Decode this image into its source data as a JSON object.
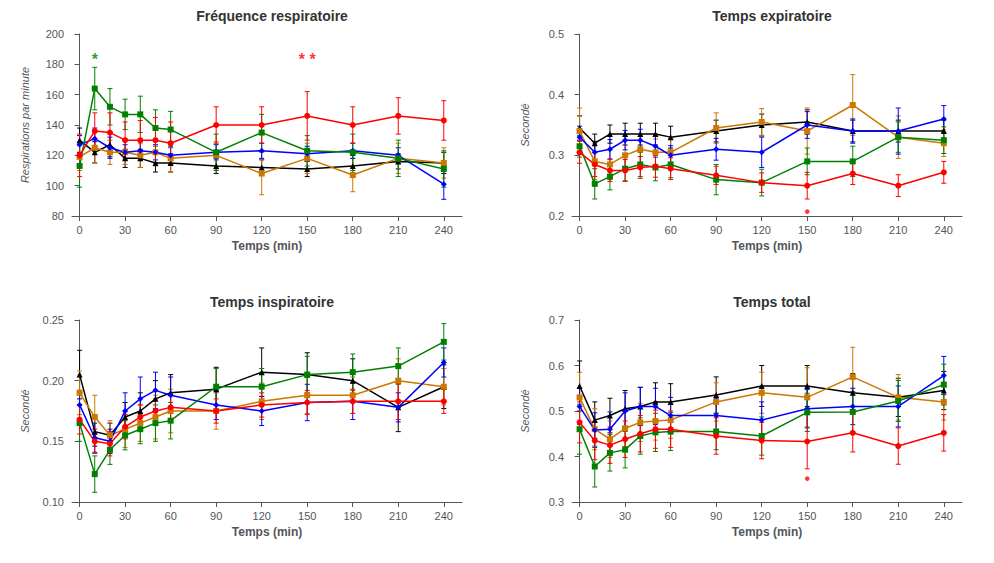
{
  "chart_data": [
    {
      "type": "line",
      "title": "Fréquence respiratoire",
      "xlabel": "Temps (min)",
      "ylabel": "Respirations par minute",
      "x": [
        0,
        10,
        20,
        30,
        40,
        50,
        60,
        90,
        120,
        150,
        180,
        210,
        240
      ],
      "xlim": [
        -5,
        252
      ],
      "xticks": [
        0,
        30,
        60,
        90,
        120,
        150,
        180,
        210,
        240
      ],
      "ylim": [
        80,
        200
      ],
      "yticks": [
        80,
        100,
        120,
        140,
        160,
        180,
        200
      ],
      "grid": false,
      "series": [
        {
          "color": "#000000",
          "marker": "triangle",
          "values": [
            130,
            122,
            127,
            118,
            118,
            115,
            115,
            113,
            112,
            111,
            113,
            116,
            115
          ],
          "errors": [
            8,
            7,
            8,
            6,
            6,
            6,
            6,
            5,
            5,
            5,
            7,
            5,
            7
          ]
        },
        {
          "color": "#CC7700",
          "marker": "square",
          "values": [
            119,
            125,
            122,
            122,
            120,
            122,
            118,
            120,
            108,
            118,
            107,
            118,
            115
          ],
          "errors": [
            9,
            10,
            8,
            8,
            8,
            9,
            9,
            9,
            14,
            10,
            11,
            10,
            10
          ]
        },
        {
          "color": "#0000FF",
          "marker": "diamond",
          "values": [
            127,
            131,
            125,
            122,
            123,
            122,
            120,
            122,
            123,
            121,
            123,
            120,
            101
          ],
          "errors": [
            6,
            7,
            7,
            5,
            6,
            5,
            6,
            5,
            5,
            5,
            5,
            5,
            10
          ]
        },
        {
          "color": "#008000",
          "marker": "square",
          "values": [
            113,
            164,
            152,
            147,
            147,
            138,
            137,
            122,
            135,
            123,
            122,
            118,
            111
          ],
          "errors": [
            14,
            14,
            12,
            10,
            12,
            12,
            12,
            12,
            12,
            10,
            12,
            12,
            12
          ]
        },
        {
          "color": "#FF0000",
          "marker": "circle",
          "values": [
            120,
            136,
            135,
            130,
            130,
            130,
            128,
            140,
            140,
            146,
            140,
            146,
            143
          ],
          "errors": [
            14,
            12,
            13,
            12,
            13,
            15,
            14,
            12,
            12,
            16,
            12,
            12,
            13
          ]
        }
      ],
      "annotations": [
        {
          "x": 10,
          "y": 183,
          "text": "*",
          "color": "#008000"
        },
        {
          "x": 150,
          "y": 183,
          "text": "* *",
          "color": "#FF0000"
        }
      ]
    },
    {
      "type": "line",
      "title": "Temps expiratoire",
      "xlabel": "Temps (min)",
      "ylabel": "Secondé",
      "x": [
        0,
        10,
        20,
        30,
        40,
        50,
        60,
        90,
        120,
        150,
        180,
        210,
        240
      ],
      "xlim": [
        -5,
        252
      ],
      "xticks": [
        0,
        30,
        60,
        90,
        120,
        150,
        180,
        210,
        240
      ],
      "ylim": [
        0.2,
        0.5
      ],
      "yticks": [
        0.2,
        0.3,
        0.4,
        0.5
      ],
      "grid": false,
      "series": [
        {
          "color": "#000000",
          "marker": "triangle",
          "values": [
            0.345,
            0.32,
            0.335,
            0.335,
            0.335,
            0.335,
            0.33,
            0.34,
            0.35,
            0.355,
            0.34,
            0.34,
            0.34
          ],
          "errors": [
            0.02,
            0.015,
            0.015,
            0.018,
            0.018,
            0.018,
            0.018,
            0.018,
            0.018,
            0.02,
            0.018,
            0.018,
            0.018
          ]
        },
        {
          "color": "#CC7700",
          "marker": "square",
          "values": [
            0.34,
            0.29,
            0.285,
            0.3,
            0.31,
            0.305,
            0.305,
            0.345,
            0.355,
            0.34,
            0.383,
            0.33,
            0.32
          ],
          "errors": [
            0.038,
            0.03,
            0.025,
            0.025,
            0.022,
            0.022,
            0.022,
            0.025,
            0.022,
            0.038,
            0.05,
            0.035,
            0.022
          ]
        },
        {
          "color": "#0000FF",
          "marker": "diamond",
          "values": [
            0.33,
            0.305,
            0.31,
            0.325,
            0.325,
            0.315,
            0.3,
            0.31,
            0.305,
            0.35,
            0.34,
            0.34,
            0.36
          ],
          "errors": [
            0.018,
            0.018,
            0.016,
            0.016,
            0.018,
            0.018,
            0.016,
            0.018,
            0.025,
            0.022,
            0.02,
            0.038,
            0.022
          ]
        },
        {
          "color": "#008000",
          "marker": "square",
          "values": [
            0.315,
            0.253,
            0.265,
            0.278,
            0.285,
            0.28,
            0.285,
            0.26,
            0.255,
            0.29,
            0.29,
            0.33,
            0.325
          ],
          "errors": [
            0.018,
            0.025,
            0.022,
            0.02,
            0.02,
            0.022,
            0.022,
            0.025,
            0.022,
            0.022,
            0.025,
            0.025,
            0.022
          ]
        },
        {
          "color": "#FF0000",
          "marker": "circle",
          "values": [
            0.305,
            0.285,
            0.275,
            0.275,
            0.28,
            0.282,
            0.278,
            0.267,
            0.255,
            0.25,
            0.27,
            0.25,
            0.272
          ],
          "errors": [
            0.018,
            0.02,
            0.018,
            0.018,
            0.018,
            0.018,
            0.018,
            0.015,
            0.016,
            0.022,
            0.018,
            0.018,
            0.018
          ]
        }
      ],
      "annotations": [
        {
          "x": 150,
          "y": 0.208,
          "text": "•",
          "color": "#FF0000"
        }
      ]
    },
    {
      "type": "line",
      "title": "Temps inspiratoire",
      "xlabel": "Temps (min)",
      "ylabel": "Secondé",
      "x": [
        0,
        10,
        20,
        30,
        40,
        50,
        60,
        90,
        120,
        150,
        180,
        210,
        240
      ],
      "xlim": [
        -5,
        252
      ],
      "xticks": [
        0,
        30,
        60,
        90,
        120,
        150,
        180,
        210,
        240
      ],
      "ylim": [
        0.1,
        0.25
      ],
      "yticks": [
        {
          "value": 0.1,
          "label": "0.10"
        },
        0.15,
        {
          "value": 0.2,
          "label": "0.20"
        },
        0.25
      ],
      "grid": false,
      "series": [
        {
          "color": "#000000",
          "marker": "triangle",
          "values": [
            0.205,
            0.158,
            0.155,
            0.17,
            0.175,
            0.185,
            0.19,
            0.193,
            0.207,
            0.205,
            0.2,
            0.178,
            0.195
          ],
          "errors": [
            0.02,
            0.012,
            0.01,
            0.012,
            0.015,
            0.015,
            0.015,
            0.018,
            0.02,
            0.018,
            0.018,
            0.02,
            0.018
          ]
        },
        {
          "color": "#CC7700",
          "marker": "square",
          "values": [
            0.19,
            0.17,
            0.155,
            0.16,
            0.165,
            0.17,
            0.175,
            0.175,
            0.183,
            0.188,
            0.188,
            0.2,
            0.195
          ],
          "errors": [
            0.018,
            0.018,
            0.012,
            0.015,
            0.015,
            0.018,
            0.018,
            0.015,
            0.015,
            0.015,
            0.015,
            0.018,
            0.015
          ]
        },
        {
          "color": "#0000FF",
          "marker": "diamond",
          "values": [
            0.18,
            0.153,
            0.15,
            0.175,
            0.185,
            0.192,
            0.188,
            0.18,
            0.175,
            0.182,
            0.183,
            0.178,
            0.215
          ],
          "errors": [
            0.012,
            0.012,
            0.01,
            0.015,
            0.018,
            0.015,
            0.015,
            0.012,
            0.012,
            0.015,
            0.015,
            0.012,
            0.012
          ]
        },
        {
          "color": "#008000",
          "marker": "square",
          "values": [
            0.165,
            0.123,
            0.143,
            0.155,
            0.16,
            0.165,
            0.167,
            0.195,
            0.195,
            0.205,
            0.207,
            0.212,
            0.232
          ],
          "errors": [
            0.015,
            0.015,
            0.012,
            0.012,
            0.012,
            0.015,
            0.015,
            0.015,
            0.015,
            0.015,
            0.015,
            0.015,
            0.015
          ]
        },
        {
          "color": "#FF0000",
          "marker": "circle",
          "values": [
            0.168,
            0.15,
            0.148,
            0.162,
            0.17,
            0.175,
            0.178,
            0.175,
            0.18,
            0.182,
            0.183,
            0.183,
            0.183
          ],
          "errors": [
            0.012,
            0.01,
            0.01,
            0.01,
            0.01,
            0.01,
            0.01,
            0.01,
            0.01,
            0.01,
            0.01,
            0.015,
            0.01
          ]
        }
      ]
    },
    {
      "type": "line",
      "title": "Temps total",
      "xlabel": "Temps (min)",
      "ylabel": "Secondé",
      "x": [
        0,
        10,
        20,
        30,
        40,
        50,
        60,
        90,
        120,
        150,
        180,
        210,
        240
      ],
      "xlim": [
        -5,
        252
      ],
      "xticks": [
        0,
        30,
        60,
        90,
        120,
        150,
        180,
        210,
        240
      ],
      "ylim": [
        0.3,
        0.7
      ],
      "yticks": [
        0.3,
        0.4,
        0.5,
        0.6,
        0.7
      ],
      "grid": false,
      "series": [
        {
          "color": "#000000",
          "marker": "triangle",
          "values": [
            0.555,
            0.48,
            0.49,
            0.505,
            0.51,
            0.52,
            0.52,
            0.535,
            0.555,
            0.555,
            0.54,
            0.53,
            0.545
          ],
          "errors": [
            0.055,
            0.04,
            0.038,
            0.04,
            0.042,
            0.042,
            0.04,
            0.04,
            0.045,
            0.045,
            0.042,
            0.042,
            0.042
          ]
        },
        {
          "color": "#CC7700",
          "marker": "square",
          "values": [
            0.53,
            0.46,
            0.438,
            0.462,
            0.475,
            0.478,
            0.48,
            0.52,
            0.54,
            0.53,
            0.575,
            0.53,
            0.52
          ],
          "errors": [
            0.055,
            0.045,
            0.04,
            0.04,
            0.042,
            0.042,
            0.04,
            0.042,
            0.045,
            0.065,
            0.065,
            0.05,
            0.04
          ]
        },
        {
          "color": "#0000FF",
          "marker": "diamond",
          "values": [
            0.51,
            0.458,
            0.46,
            0.5,
            0.51,
            0.51,
            0.49,
            0.49,
            0.48,
            0.505,
            0.51,
            0.51,
            0.578
          ],
          "errors": [
            0.04,
            0.038,
            0.038,
            0.04,
            0.042,
            0.04,
            0.04,
            0.038,
            0.04,
            0.042,
            0.04,
            0.045,
            0.042
          ]
        },
        {
          "color": "#008000",
          "marker": "square",
          "values": [
            0.46,
            0.378,
            0.408,
            0.415,
            0.445,
            0.453,
            0.455,
            0.455,
            0.445,
            0.497,
            0.498,
            0.522,
            0.558
          ],
          "errors": [
            0.055,
            0.045,
            0.04,
            0.04,
            0.04,
            0.042,
            0.042,
            0.04,
            0.042,
            0.042,
            0.045,
            0.045,
            0.045
          ]
        },
        {
          "color": "#FF0000",
          "marker": "circle",
          "values": [
            0.475,
            0.435,
            0.425,
            0.438,
            0.45,
            0.46,
            0.46,
            0.445,
            0.435,
            0.433,
            0.452,
            0.423,
            0.452
          ],
          "errors": [
            0.045,
            0.042,
            0.04,
            0.04,
            0.04,
            0.042,
            0.04,
            0.04,
            0.04,
            0.06,
            0.042,
            0.04,
            0.04
          ]
        }
      ],
      "annotations": [
        {
          "x": 150,
          "y": 0.352,
          "text": "•",
          "color": "#FF0000"
        }
      ]
    }
  ]
}
